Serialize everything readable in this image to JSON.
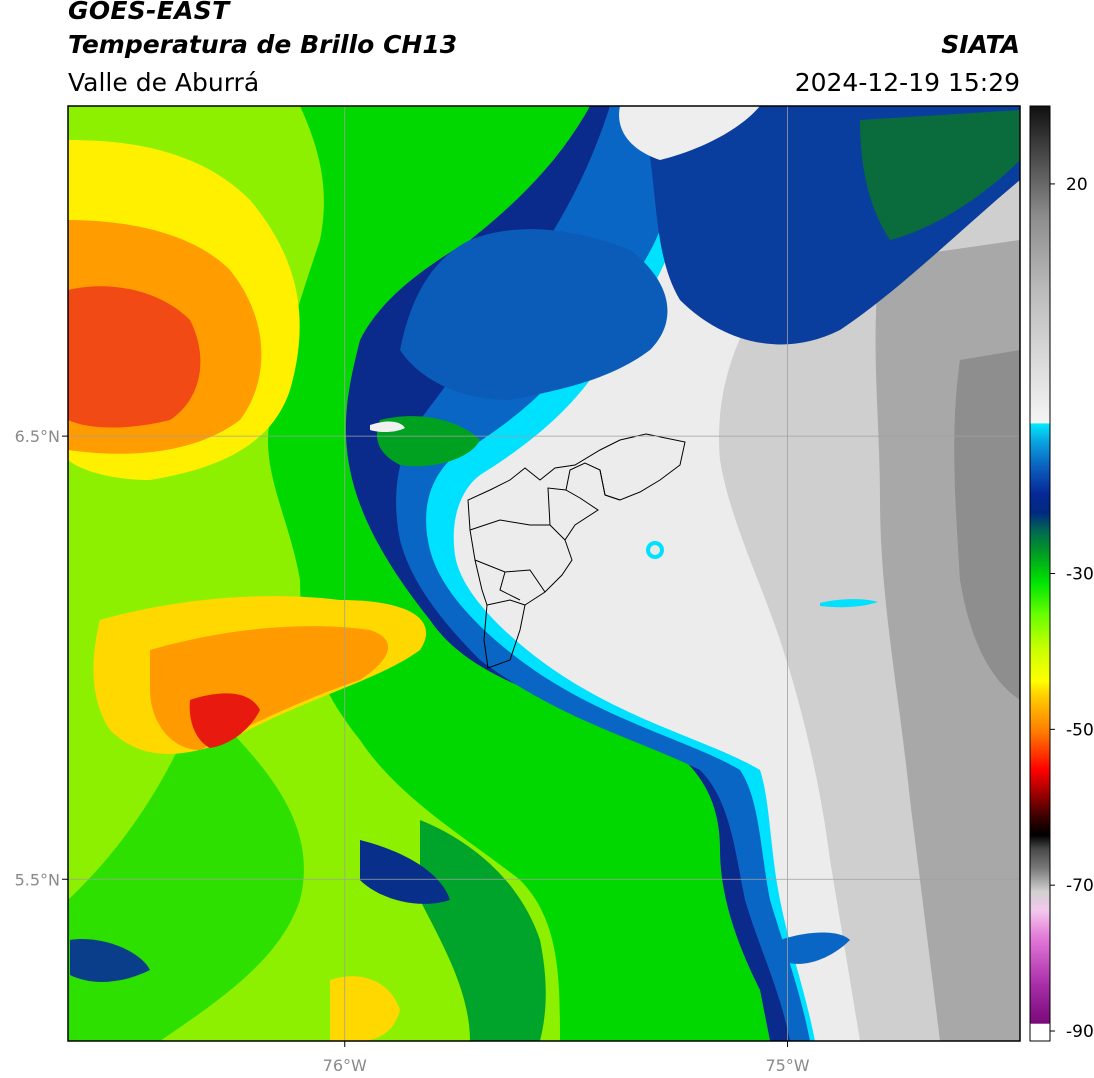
{
  "header": {
    "satellite": "GOES-EAST",
    "product": "Temperatura de Brillo CH13",
    "region": "Valle de Aburrá",
    "organization": "SIATA",
    "datetime": "2024-12-19 15:29"
  },
  "map": {
    "lat_ticks": [
      {
        "value": 6.5,
        "label": "6.5°N"
      },
      {
        "value": 5.5,
        "label": "5.5°N"
      }
    ],
    "lon_ticks": [
      {
        "value": -76.0,
        "label": "76°W"
      },
      {
        "value": -75.0,
        "label": "75°W"
      }
    ],
    "lon_range": [
      -76.625,
      -74.475
    ],
    "lat_range": [
      5.135,
      7.245
    ],
    "grid": true
  },
  "colorbar": {
    "range": [
      -90,
      30
    ],
    "tick_labels": [
      {
        "value": 20,
        "label": "20"
      },
      {
        "value": -30,
        "label": "-30"
      },
      {
        "value": -50,
        "label": "-50"
      },
      {
        "value": -70,
        "label": "-70"
      },
      {
        "value": -90,
        "label": "-90"
      }
    ]
  },
  "colors": {
    "warm_red": "#e8231a",
    "orange": "#ff9c00",
    "yellow": "#ffff00",
    "lime": "#a0f000",
    "green": "#00d400",
    "dark_green": "#007a3c",
    "navy": "#0a2a8a",
    "blue": "#0a6cc8",
    "cyan": "#00e5ff",
    "cloud_white": "#ececec",
    "cloud_gray": "#a8a8a8"
  }
}
